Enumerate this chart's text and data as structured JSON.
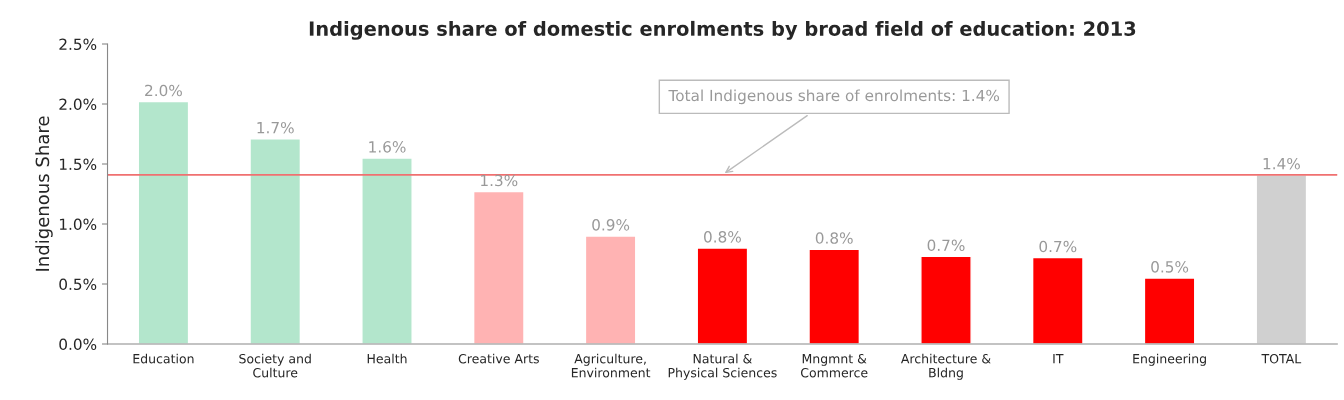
{
  "chart_data": {
    "type": "bar",
    "title": "Indigenous share of domestic enrolments by broad field of education: 2013",
    "ylabel": "Indigenous Share",
    "categories": [
      "Education",
      "Society and\nCulture",
      "Health",
      "Creative Arts",
      "Agriculture,\nEnvironment",
      "Natural &\nPhysical Sciences",
      "Mngmnt &\nCommerce",
      "Architecture &\nBldng",
      "IT",
      "Engineering",
      "TOTAL"
    ],
    "values": [
      2.02,
      1.71,
      1.55,
      1.27,
      0.9,
      0.8,
      0.79,
      0.73,
      0.72,
      0.55,
      1.41
    ],
    "colors": [
      "#b3e6cc",
      "#b3e6cc",
      "#b3e6cc",
      "#ffb3b3",
      "#ffb3b3",
      "#ff0000",
      "#ff0000",
      "#ff0000",
      "#ff0000",
      "#ff0000",
      "#d0d0d0"
    ],
    "value_labels": [
      "2.0%",
      "1.7%",
      "1.6%",
      "1.3%",
      "0.9%",
      "0.8%",
      "0.8%",
      "0.7%",
      "0.7%",
      "0.5%",
      "1.4%"
    ],
    "ylim": [
      0,
      2.5
    ],
    "yticks": [
      {
        "value": 0,
        "label": "0.0%"
      },
      {
        "value": 0.5,
        "label": "0.5%"
      },
      {
        "value": 1.0,
        "label": "1.0%"
      },
      {
        "value": 1.5,
        "label": "1.5%"
      },
      {
        "value": 2.0,
        "label": "2.0%"
      },
      {
        "value": 2.5,
        "label": "2.5%"
      }
    ],
    "ref_lines": [
      {
        "axis": "y",
        "value": 1.41,
        "label": "Total Indigenous share of enrolments: 1.4%",
        "color": "#f07070"
      }
    ],
    "grid": false
  }
}
